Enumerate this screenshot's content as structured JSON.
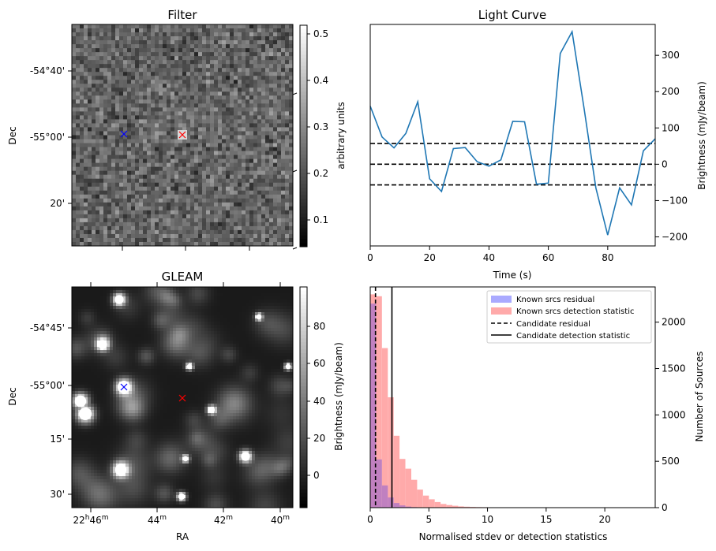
{
  "colors": {
    "line": "#1f77b4",
    "known_residual": "#aaaaff",
    "known_detection": "#ffaaaa",
    "overlap": "#c080c0",
    "candidate_marker": "#ff0000",
    "known_marker": "#0000ff"
  },
  "chart_data": [
    {
      "id": "filter",
      "type": "heatmap",
      "title": "Filter",
      "ylabel": "Dec",
      "yticks": [
        "-54°40'",
        "-55°00'",
        "20'"
      ],
      "colorbar": {
        "label": "arbitrary units",
        "ticks": [
          "0.1",
          "0.2",
          "0.3",
          "0.4",
          "0.5"
        ],
        "range": [
          0.05,
          0.52
        ],
        "colormap": "gray"
      },
      "markers": [
        {
          "symbol": "x",
          "color": "blue"
        },
        {
          "symbol": "x",
          "color": "red"
        }
      ]
    },
    {
      "id": "light_curve",
      "type": "line",
      "title": "Light Curve",
      "xlabel": "Time (s)",
      "ylabel": "Brightness (mJy/beam)",
      "xlim": [
        0,
        96
      ],
      "ylim": [
        -225,
        385
      ],
      "xticks": [
        "0",
        "20",
        "40",
        "60",
        "80"
      ],
      "yticks": [
        "-200",
        "-100",
        "0",
        "100",
        "200",
        "300"
      ],
      "x": [
        0,
        4,
        8,
        12,
        16,
        20,
        24,
        28,
        32,
        36,
        40,
        44,
        48,
        52,
        56,
        60,
        64,
        68,
        72,
        76,
        80,
        84,
        88,
        92,
        96
      ],
      "values": [
        160,
        75,
        45,
        85,
        172,
        -40,
        -75,
        43,
        46,
        7,
        -5,
        12,
        118,
        117,
        -55,
        -52,
        305,
        365,
        155,
        -65,
        -195,
        -65,
        -112,
        37,
        70
      ],
      "hlines": [
        57,
        0,
        -57
      ]
    },
    {
      "id": "gleam",
      "type": "heatmap",
      "title": "GLEAM",
      "xlabel": "RA",
      "ylabel": "Dec",
      "xticks": [
        "22h46m",
        "44m",
        "42m",
        "40m"
      ],
      "yticks": [
        "-54°45'",
        "-55°00'",
        "15'",
        "30'"
      ],
      "colorbar": {
        "label": "Brightness (mJy/beam)",
        "ticks": [
          "0",
          "20",
          "40",
          "60",
          "80"
        ],
        "range": [
          -15,
          98
        ],
        "colormap": "gray"
      },
      "markers": [
        {
          "symbol": "x",
          "color": "blue"
        },
        {
          "symbol": "x",
          "color": "red"
        }
      ]
    },
    {
      "id": "histogram",
      "type": "bar",
      "xlabel": "Normalised stdev or detection statistics",
      "ylabel": "Number of Sources",
      "xlim": [
        0,
        24.3
      ],
      "ylim": [
        0,
        2380
      ],
      "xticks": [
        "0",
        "5",
        "10",
        "15",
        "20"
      ],
      "yticks": [
        "0",
        "500",
        "1000",
        "1500",
        "2000"
      ],
      "bin_width": 0.5,
      "series": [
        {
          "name": "Known srcs residual",
          "bins_start": 0,
          "values": [
            2200,
            520,
            240,
            110,
            50,
            25,
            12,
            6,
            3,
            2,
            1
          ]
        },
        {
          "name": "Known srcs detection statistic",
          "bins_start": 0,
          "values": [
            2300,
            2280,
            1720,
            1190,
            775,
            525,
            420,
            300,
            195,
            130,
            90,
            60,
            40,
            28,
            20,
            14,
            10,
            8,
            6,
            5,
            4,
            3,
            3,
            2,
            2,
            2,
            1,
            1,
            1,
            1
          ]
        },
        {
          "name": "Candidate residual",
          "x": 0.45
        },
        {
          "name": "Candidate detection statistic",
          "x": 1.85
        }
      ],
      "legend": "upper right"
    }
  ]
}
